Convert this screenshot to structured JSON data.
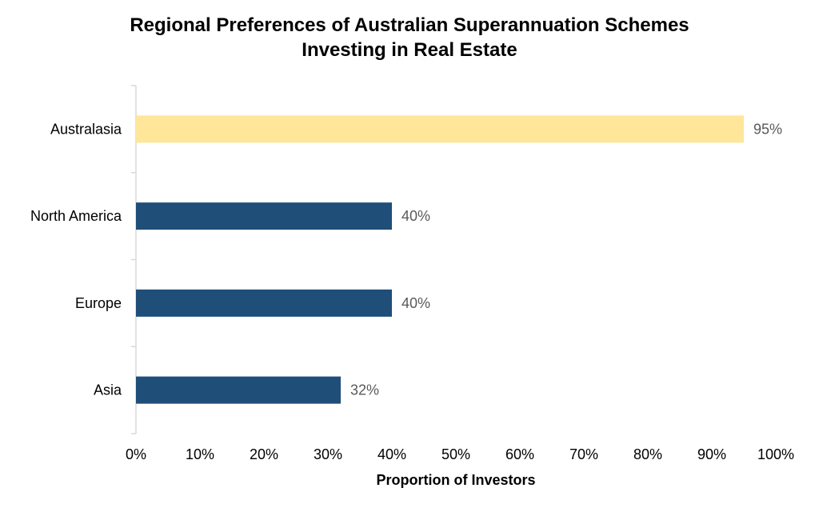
{
  "chart_data": {
    "type": "bar",
    "orientation": "horizontal",
    "title_lines": [
      "Regional Preferences of Australian Superannuation Schemes",
      "Investing in Real Estate"
    ],
    "categories": [
      "Australasia",
      "North America",
      "Europe",
      "Asia"
    ],
    "values": [
      95,
      40,
      40,
      32
    ],
    "data_labels": [
      "95%",
      "40%",
      "40%",
      "32%"
    ],
    "xlabel": "Proportion of Investors",
    "ylabel": "",
    "xlim": [
      0,
      100
    ],
    "x_ticks": [
      "0%",
      "10%",
      "20%",
      "30%",
      "40%",
      "50%",
      "60%",
      "70%",
      "80%",
      "90%",
      "100%"
    ],
    "grid": false,
    "legend": "none",
    "colors": {
      "highlight": "#FFE699",
      "default": "#1F4E79",
      "axis": "#D9D9D9",
      "data_label": "#595959"
    }
  }
}
